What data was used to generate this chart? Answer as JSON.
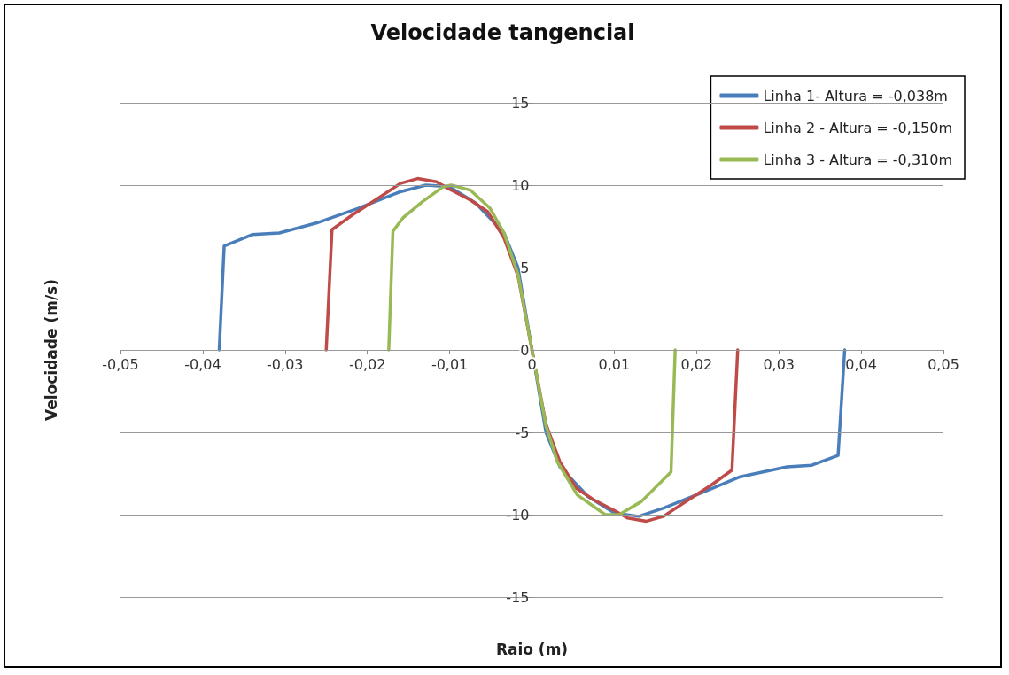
{
  "chart_data": {
    "type": "line",
    "title": "Velocidade tangencial",
    "xlabel": "Raio (m)",
    "ylabel": "Velocidade (m/s)",
    "xlim": [
      -0.05,
      0.05
    ],
    "ylim": [
      -15,
      15
    ],
    "xticks": [
      {
        "value": -0.05,
        "label": "-0,05"
      },
      {
        "value": -0.04,
        "label": "-0,04"
      },
      {
        "value": -0.03,
        "label": "-0,03"
      },
      {
        "value": -0.02,
        "label": "-0,02"
      },
      {
        "value": -0.01,
        "label": "-0,01"
      },
      0,
      {
        "value": 0.01,
        "label": "0,01"
      },
      {
        "value": 0.02,
        "label": "0,02"
      },
      {
        "value": 0.03,
        "label": "0,03"
      },
      {
        "value": 0.04,
        "label": "0,04"
      },
      {
        "value": 0.05,
        "label": "0,05"
      }
    ],
    "yticks": [
      -15,
      -10,
      -5,
      0,
      5,
      10,
      15
    ],
    "grid": "y",
    "legend": "top right",
    "marker": "none",
    "line_style": "solid",
    "series": [
      {
        "name": "Linha 1- Altura = -0,038m",
        "color": "#4a7ebb",
        "x": [
          -0.038,
          -0.0374,
          -0.034,
          -0.0307,
          -0.0262,
          -0.0211,
          -0.016,
          -0.0129,
          -0.01,
          -0.0068,
          -0.0034,
          -0.0017,
          0,
          0.0017,
          0.0034,
          0.0068,
          0.01,
          0.013,
          0.016,
          0.021,
          0.0253,
          0.031,
          0.034,
          0.0372,
          0.038
        ],
        "values": [
          0,
          6.3,
          7,
          7.1,
          7.7,
          8.6,
          9.6,
          10,
          9.9,
          8.9,
          7.1,
          5,
          0,
          -5,
          -7.1,
          -8.9,
          -9.9,
          -10.1,
          -9.6,
          -8.6,
          -7.7,
          -7.1,
          -7,
          -6.4,
          0
        ]
      },
      {
        "name": "Linha 2 - Altura = -0,150m",
        "color": "#be4b48",
        "x": [
          -0.025,
          -0.0243,
          -0.0218,
          -0.0184,
          -0.016,
          -0.0139,
          -0.0116,
          -0.0102,
          -0.0075,
          -0.0054,
          -0.0034,
          -0.0017,
          0,
          0.0017,
          0.0034,
          0.0054,
          0.0075,
          0.0102,
          0.0116,
          0.0139,
          0.016,
          0.0184,
          0.0218,
          0.0243,
          0.025
        ],
        "values": [
          0,
          7.3,
          8.2,
          9.3,
          10.1,
          10.4,
          10.2,
          9.8,
          9.1,
          8.4,
          6.8,
          4.5,
          0,
          -4.5,
          -6.8,
          -8.4,
          -9.1,
          -9.8,
          -10.2,
          -10.4,
          -10.1,
          -9.3,
          -8.2,
          -7.3,
          0
        ]
      },
      {
        "name": "Linha 3 - Altura = -0,310m",
        "color": "#98b954",
        "x": [
          -0.0174,
          -0.0169,
          -0.0157,
          -0.0133,
          -0.0108,
          -0.0098,
          -0.0075,
          -0.0051,
          -0.0034,
          -0.0017,
          0,
          0.0017,
          0.0031,
          0.0055,
          0.0089,
          0.0106,
          0.0133,
          0.0169,
          0.0174
        ],
        "values": [
          0,
          7.2,
          8,
          9,
          9.9,
          10,
          9.7,
          8.6,
          7.1,
          4.6,
          0,
          -4.6,
          -6.8,
          -8.8,
          -10,
          -10,
          -9.2,
          -7.4,
          0
        ]
      }
    ]
  }
}
